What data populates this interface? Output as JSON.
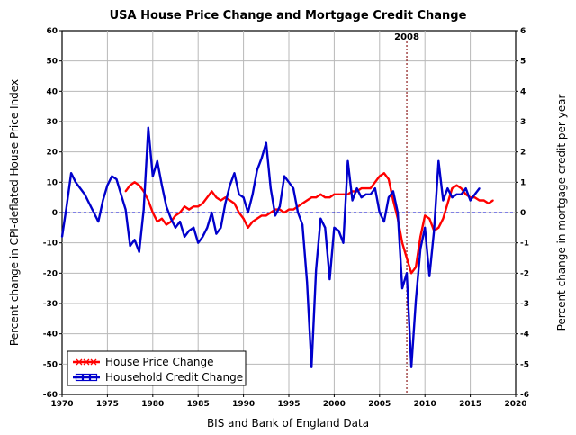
{
  "chart_data": {
    "type": "line",
    "title": "USA House Price Change and Mortgage Credit Change",
    "xlabel": "BIS and Bank of England Data",
    "ylabel_left": "Percent change in CPI-deflated House Price Index",
    "ylabel_right": "Percent change in mortgage credit per year",
    "xlim": [
      1970,
      2020
    ],
    "ylim_left": [
      -60,
      60
    ],
    "ylim_right": [
      -6,
      6
    ],
    "x_ticks": [
      1970,
      1975,
      1980,
      1985,
      1990,
      1995,
      2000,
      2005,
      2010,
      2015,
      2020
    ],
    "y_ticks_left": [
      60,
      50,
      40,
      30,
      20,
      10,
      0,
      -10,
      -20,
      -30,
      -40,
      -50,
      -60
    ],
    "y_ticks_right": [
      6,
      5,
      4,
      3,
      2,
      1,
      0,
      -1,
      -2,
      -3,
      -4,
      -5,
      -6
    ],
    "grid": true,
    "legend_position": "bottom-left",
    "annotations": [
      {
        "label": "2008",
        "x": 2008
      }
    ],
    "series": [
      {
        "name": "House Price Change",
        "axis": "left",
        "color": "#ff0000",
        "marker": "x",
        "x": [
          1977.0,
          1977.5,
          1978.0,
          1978.5,
          1979.0,
          1979.5,
          1980.0,
          1980.5,
          1981.0,
          1981.5,
          1982.0,
          1982.5,
          1983.0,
          1983.5,
          1984.0,
          1984.5,
          1985.0,
          1985.5,
          1986.0,
          1986.5,
          1987.0,
          1987.5,
          1988.0,
          1988.5,
          1989.0,
          1989.5,
          1990.0,
          1990.5,
          1991.0,
          1991.5,
          1992.0,
          1992.5,
          1993.0,
          1993.5,
          1994.0,
          1994.5,
          1995.0,
          1995.5,
          1996.0,
          1996.5,
          1997.0,
          1997.5,
          1998.0,
          1998.5,
          1999.0,
          1999.5,
          2000.0,
          2000.5,
          2001.0,
          2001.5,
          2002.0,
          2002.5,
          2003.0,
          2003.5,
          2004.0,
          2004.5,
          2005.0,
          2005.5,
          2006.0,
          2006.5,
          2007.0,
          2007.5,
          2008.0,
          2008.5,
          2009.0,
          2009.5,
          2010.0,
          2010.5,
          2011.0,
          2011.5,
          2012.0,
          2012.5,
          2013.0,
          2013.5,
          2014.0,
          2014.5,
          2015.0,
          2015.5,
          2016.0,
          2016.5,
          2017.0,
          2017.5
        ],
        "values": [
          7,
          9,
          10,
          9,
          7,
          4,
          0,
          -3,
          -2,
          -4,
          -3,
          -1,
          0,
          2,
          1,
          2,
          2,
          3,
          5,
          7,
          5,
          4,
          5,
          4,
          3,
          0,
          -2,
          -5,
          -3,
          -2,
          -1,
          -1,
          0,
          1,
          1,
          0,
          1,
          1,
          2,
          3,
          4,
          5,
          5,
          6,
          5,
          5,
          6,
          6,
          6,
          6,
          7,
          7,
          8,
          8,
          8,
          10,
          12,
          13,
          11,
          4,
          -2,
          -10,
          -15,
          -20,
          -18,
          -8,
          -1,
          -2,
          -6,
          -5,
          -2,
          3,
          8,
          9,
          8,
          6,
          5,
          5,
          4,
          4,
          3,
          4
        ]
      },
      {
        "name": "Household Credit Change",
        "axis": "right",
        "color": "#0000cc",
        "marker": "square",
        "x": [
          1970.0,
          1970.5,
          1971.0,
          1971.5,
          1972.0,
          1972.5,
          1973.0,
          1973.5,
          1974.0,
          1974.5,
          1975.0,
          1975.5,
          1976.0,
          1976.5,
          1977.0,
          1977.5,
          1978.0,
          1978.5,
          1979.0,
          1979.5,
          1980.0,
          1980.5,
          1981.0,
          1981.5,
          1982.0,
          1982.5,
          1983.0,
          1983.5,
          1984.0,
          1984.5,
          1985.0,
          1985.5,
          1986.0,
          1986.5,
          1987.0,
          1987.5,
          1988.0,
          1988.5,
          1989.0,
          1989.5,
          1990.0,
          1990.5,
          1991.0,
          1991.5,
          1992.0,
          1992.5,
          1993.0,
          1993.5,
          1994.0,
          1994.5,
          1995.0,
          1995.5,
          1996.0,
          1996.5,
          1997.0,
          1997.5,
          1998.0,
          1998.5,
          1999.0,
          1999.5,
          2000.0,
          2000.5,
          2001.0,
          2001.5,
          2002.0,
          2002.5,
          2003.0,
          2003.5,
          2004.0,
          2004.5,
          2005.0,
          2005.5,
          2006.0,
          2006.5,
          2007.0,
          2007.5,
          2008.0,
          2008.5,
          2009.0,
          2009.5,
          2010.0,
          2010.5,
          2011.0,
          2011.5,
          2012.0,
          2012.5,
          2013.0,
          2013.5,
          2014.0,
          2014.5,
          2015.0,
          2015.5,
          2016.0
        ],
        "values": [
          -0.8,
          0.2,
          1.3,
          1.0,
          0.8,
          0.6,
          0.3,
          0.0,
          -0.3,
          0.4,
          0.9,
          1.2,
          1.1,
          0.6,
          0.1,
          -1.1,
          -0.9,
          -1.3,
          0.1,
          2.8,
          1.2,
          1.7,
          0.9,
          0.2,
          -0.2,
          -0.5,
          -0.3,
          -0.8,
          -0.6,
          -0.5,
          -1.0,
          -0.8,
          -0.5,
          0.0,
          -0.7,
          -0.5,
          0.3,
          0.9,
          1.3,
          0.6,
          0.5,
          0.0,
          0.6,
          1.4,
          1.8,
          2.3,
          0.8,
          -0.1,
          0.2,
          1.2,
          1.0,
          0.8,
          0.0,
          -0.4,
          -2.3,
          -5.1,
          -1.9,
          -0.2,
          -0.5,
          -2.2,
          -0.5,
          -0.6,
          -1.0,
          1.7,
          0.4,
          0.8,
          0.5,
          0.6,
          0.6,
          0.8,
          0.0,
          -0.3,
          0.5,
          0.7,
          0.0,
          -2.5,
          -2.0,
          -5.1,
          -2.9,
          -1.2,
          -0.5,
          -2.1,
          -0.6,
          1.7,
          0.4,
          0.8,
          0.5,
          0.6,
          0.6,
          0.8,
          0.4,
          0.6,
          0.8
        ]
      }
    ]
  }
}
